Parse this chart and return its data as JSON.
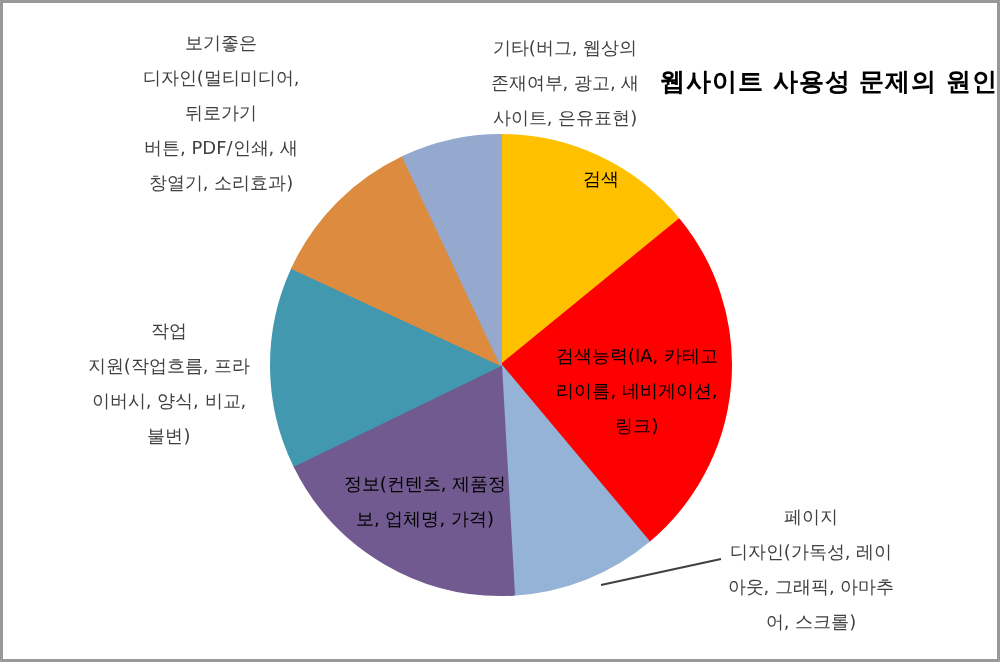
{
  "chart_data": {
    "type": "pie",
    "title": "웹사이트 사용성 문제의 원인",
    "categories": [
      "검색",
      "검색능력(IA, 카테고\n리이름, 네비게이션,\n링크)",
      "페이지\n디자인(가독성, 레이\n아웃, 그래픽, 아마추\n어, 스크롤)",
      "정보(컨텐츠, 제품정\n보, 업체명, 가격)",
      "작업\n지원(작업흐름, 프라\n이버시, 양식, 비교,\n불변)",
      "보기좋은\n디자인(멀티미디어,\n뒤로가기\n버튼, PDF/인쇄, 새\n창열기, 소리효과)",
      "기타(버그, 웹상의\n존재여부, 광고, 새\n사이트, 은유표현)"
    ],
    "values": [
      14.1,
      24.8,
      10.2,
      18.7,
      14.1,
      11.1,
      7.0
    ],
    "colors": [
      "#ffc000",
      "#ff0000",
      "#95b3d7",
      "#705a8f",
      "#4198af",
      "#dd8b3e",
      "#95a9cf"
    ]
  }
}
